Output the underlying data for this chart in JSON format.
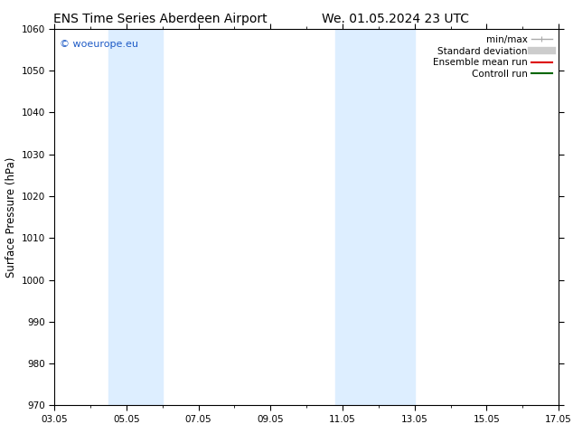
{
  "title_left": "ENS Time Series Aberdeen Airport",
  "title_right": "We. 01.05.2024 23 UTC",
  "ylabel": "Surface Pressure (hPa)",
  "ylim": [
    970,
    1060
  ],
  "yticks": [
    970,
    980,
    990,
    1000,
    1010,
    1020,
    1030,
    1040,
    1050,
    1060
  ],
  "xtick_labels": [
    "03.05",
    "05.05",
    "07.05",
    "09.05",
    "11.05",
    "13.05",
    "15.05",
    "17.05"
  ],
  "xtick_positions": [
    0,
    2,
    4,
    6,
    8,
    10,
    12,
    14
  ],
  "shaded_bands": [
    {
      "x_start": 1.5,
      "x_end": 3.0
    },
    {
      "x_start": 7.8,
      "x_end": 10.0
    }
  ],
  "shade_color": "#ddeeff",
  "background_color": "#ffffff",
  "watermark_text": "© woeurope.eu",
  "watermark_color": "#1e5bc6",
  "legend_items": [
    {
      "label": "min/max",
      "color": "#aaaaaa",
      "lw": 1.0,
      "ls": "-",
      "type": "errorbar"
    },
    {
      "label": "Standard deviation",
      "color": "#cccccc",
      "lw": 6,
      "ls": "-",
      "type": "line"
    },
    {
      "label": "Ensemble mean run",
      "color": "#dd0000",
      "lw": 1.5,
      "ls": "-",
      "type": "line"
    },
    {
      "label": "Controll run",
      "color": "#006600",
      "lw": 1.5,
      "ls": "-",
      "type": "line"
    }
  ],
  "title_fontsize": 10,
  "tick_fontsize": 7.5,
  "legend_fontsize": 7.5,
  "ylabel_fontsize": 8.5,
  "xlim": [
    0,
    14
  ]
}
